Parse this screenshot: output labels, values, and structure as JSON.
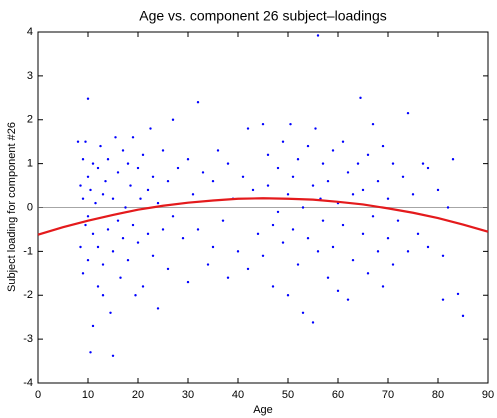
{
  "chart_data": {
    "type": "scatter",
    "title": "Age vs. component 26 subject–loadings",
    "x_label": "Age",
    "y_label": "Subject loading for component #26",
    "xlim": [
      0,
      90
    ],
    "ylim": [
      -4,
      4
    ],
    "xticks": [
      0,
      10,
      20,
      30,
      40,
      50,
      60,
      70,
      80,
      90
    ],
    "yticks": [
      -4,
      -3,
      -2,
      -1,
      0,
      1,
      2,
      3,
      4
    ],
    "grid": false,
    "hline": 0,
    "color": "#0000ff",
    "x": [
      8,
      8.5,
      8.5,
      9,
      9,
      9,
      9.5,
      9.5,
      10,
      10,
      10,
      10,
      10.5,
      10.5,
      11,
      11,
      11,
      11.5,
      12,
      12,
      12,
      12.5,
      13,
      13,
      13,
      13.5,
      14,
      14,
      14.5,
      15,
      15,
      15,
      15.5,
      16,
      16,
      16.5,
      17,
      17,
      17.5,
      18,
      18,
      18.5,
      19,
      19,
      19.5,
      20,
      20,
      20.5,
      21,
      21,
      22,
      22,
      22.5,
      23,
      23,
      24,
      24,
      25,
      25,
      26,
      26,
      27,
      27,
      28,
      29,
      30,
      30,
      31,
      32,
      32,
      33,
      34,
      35,
      35,
      36,
      37,
      38,
      38,
      39,
      40,
      41,
      42,
      42,
      43,
      44,
      45,
      45,
      46,
      46,
      47,
      47,
      48,
      48,
      49,
      49,
      50,
      50,
      50.5,
      51,
      51,
      52,
      52,
      53,
      53,
      54,
      54,
      55,
      55,
      55.5,
      56,
      56,
      56.5,
      57,
      57,
      58,
      58,
      59,
      59,
      60,
      60,
      61,
      61,
      62,
      62,
      63,
      63,
      64,
      64.5,
      65,
      65,
      66,
      66,
      67,
      67,
      68,
      68,
      69,
      69,
      70,
      70,
      71,
      71,
      72,
      73,
      74,
      74,
      75,
      76,
      77,
      78,
      78,
      80,
      81,
      81,
      82,
      83,
      84,
      85
    ],
    "values": [
      1.5,
      0.5,
      -0.9,
      1.1,
      -1.5,
      0.2,
      -0.4,
      1.5,
      2.48,
      0.7,
      -0.2,
      -1.2,
      -3.3,
      0.4,
      -2.7,
      1.0,
      -0.6,
      0.1,
      -1.8,
      0.9,
      -0.9,
      1.4,
      -2.0,
      0.3,
      -1.3,
      0.6,
      -0.5,
      1.1,
      -2.4,
      -3.38,
      0.2,
      -1.0,
      1.6,
      -0.3,
      0.8,
      -1.6,
      1.3,
      -0.7,
      0.0,
      1.0,
      -1.2,
      0.5,
      1.6,
      -0.4,
      -2.0,
      0.9,
      -0.8,
      0.2,
      -1.8,
      1.2,
      0.4,
      -0.6,
      1.8,
      -1.1,
      0.7,
      -2.3,
      0.1,
      1.3,
      -0.5,
      0.6,
      -1.4,
      2.0,
      -0.2,
      0.9,
      -0.7,
      1.1,
      -1.7,
      0.3,
      2.4,
      -0.5,
      0.8,
      -1.3,
      0.6,
      -0.9,
      1.3,
      -0.3,
      1.0,
      -1.6,
      0.2,
      -1.0,
      0.7,
      1.8,
      -1.4,
      0.4,
      -0.6,
      1.9,
      -1.1,
      0.5,
      1.2,
      -0.4,
      -1.8,
      0.9,
      -0.1,
      1.5,
      -0.8,
      0.3,
      -2.0,
      1.9,
      -0.5,
      0.7,
      -1.3,
      1.1,
      0.0,
      -2.4,
      1.4,
      -0.7,
      -2.62,
      0.5,
      1.8,
      3.92,
      -1.0,
      0.2,
      1.0,
      -0.3,
      -1.6,
      0.6,
      1.3,
      -0.9,
      0.1,
      -1.9,
      1.5,
      -0.4,
      -2.1,
      0.8,
      0.3,
      -1.2,
      1.0,
      2.5,
      -0.6,
      0.4,
      -1.5,
      1.2,
      1.9,
      -0.2,
      -1.0,
      0.6,
      1.4,
      -1.8,
      0.2,
      -0.7,
      1.0,
      -1.3,
      -0.3,
      0.7,
      2.15,
      -1.0,
      0.3,
      -0.6,
      1.0,
      -0.9,
      0.9,
      0.4,
      -2.1,
      -1.1,
      0.0,
      1.1,
      -1.97,
      -2.47
    ],
    "fit": {
      "color": "#e41a1c",
      "x": [
        0,
        5,
        10,
        15,
        20,
        25,
        30,
        35,
        40,
        45,
        50,
        55,
        60,
        65,
        70,
        75,
        80,
        85,
        90
      ],
      "values": [
        -0.62,
        -0.45,
        -0.3,
        -0.17,
        -0.05,
        0.04,
        0.11,
        0.16,
        0.2,
        0.21,
        0.2,
        0.18,
        0.13,
        0.07,
        -0.02,
        -0.12,
        -0.24,
        -0.39,
        -0.55
      ]
    }
  }
}
